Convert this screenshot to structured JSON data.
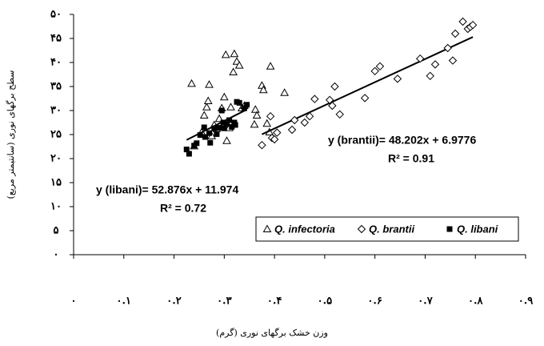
{
  "chart_data": {
    "type": "scatter",
    "xlabel": "وزن خشک برگهای نوری (گرم)",
    "ylabel": "سطح برگهای نوری (سانتیمتر مربع)",
    "xlim": [
      0,
      0.9
    ],
    "xticks": [
      {
        "value": 0,
        "label": "۰"
      },
      {
        "value": 0.1,
        "label": "۰.۱"
      },
      {
        "value": 0.2,
        "label": "۰.۲"
      },
      {
        "value": 0.3,
        "label": "۰.۳"
      },
      {
        "value": 0.4,
        "label": "۰.۴"
      },
      {
        "value": 0.5,
        "label": "۰.۵"
      },
      {
        "value": 0.6,
        "label": "۰.۶"
      },
      {
        "value": 0.7,
        "label": "۰.۷"
      },
      {
        "value": 0.8,
        "label": "۰.۸"
      },
      {
        "value": 0.9,
        "label": "۰.۹"
      }
    ],
    "ylim": [
      0,
      50
    ],
    "yticks": [
      {
        "value": 0,
        "label": "۰"
      },
      {
        "value": 5,
        "label": "۵"
      },
      {
        "value": 10,
        "label": "۱۰"
      },
      {
        "value": 15,
        "label": "۱۵"
      },
      {
        "value": 20,
        "label": "۲۰"
      },
      {
        "value": 25,
        "label": "۲۵"
      },
      {
        "value": 30,
        "label": "۳۰"
      },
      {
        "value": 35,
        "label": "۳۵"
      },
      {
        "value": 40,
        "label": "۴۰"
      },
      {
        "value": 45,
        "label": "۴۵"
      },
      {
        "value": 50,
        "label": "۵۰"
      }
    ],
    "series": [
      {
        "name": "Q. infectoria",
        "marker": "triangle",
        "color": "#000000",
        "x": [
          0.235,
          0.24,
          0.255,
          0.26,
          0.265,
          0.268,
          0.27,
          0.275,
          0.28,
          0.285,
          0.29,
          0.295,
          0.3,
          0.303,
          0.305,
          0.31,
          0.313,
          0.318,
          0.32,
          0.325,
          0.33,
          0.335,
          0.34,
          0.36,
          0.362,
          0.365,
          0.375,
          0.378,
          0.385,
          0.392,
          0.39,
          0.42
        ],
        "values": [
          35.6,
          22.6,
          25.5,
          29.0,
          30.7,
          32.0,
          35.4,
          24.7,
          27.0,
          26.2,
          28.3,
          30.5,
          32.8,
          41.6,
          23.7,
          26.4,
          30.7,
          38.0,
          41.8,
          40.2,
          39.4,
          30.5,
          31.0,
          27.1,
          30.2,
          29.0,
          35.2,
          34.3,
          27.3,
          39.2,
          25.5,
          33.7
        ]
      },
      {
        "name": "Q. brantii",
        "marker": "diamond",
        "color": "#000000",
        "x": [
          0.375,
          0.392,
          0.395,
          0.4,
          0.405,
          0.435,
          0.44,
          0.46,
          0.47,
          0.48,
          0.51,
          0.515,
          0.52,
          0.53,
          0.58,
          0.6,
          0.61,
          0.645,
          0.69,
          0.71,
          0.72,
          0.745,
          0.755,
          0.76,
          0.775,
          0.785,
          0.79,
          0.795
        ],
        "values": [
          22.8,
          28.8,
          24.3,
          24.0,
          25.4,
          26.0,
          28.0,
          27.5,
          28.8,
          32.4,
          32.2,
          31.0,
          35.0,
          29.2,
          32.6,
          38.2,
          39.2,
          36.6,
          40.8,
          37.2,
          39.6,
          43.0,
          40.4,
          46.0,
          48.5,
          47.0,
          47.4,
          47.8
        ],
        "trendline": {
          "label": "y (brantii)= 48.202x + 6.9776",
          "slope": 48.202,
          "intercept": 6.9776,
          "r2_label": "R² = 0.91",
          "r2": 0.91
        }
      },
      {
        "name": "Q. libani",
        "marker": "square",
        "color": "#000000",
        "x": [
          0.225,
          0.23,
          0.24,
          0.245,
          0.252,
          0.26,
          0.262,
          0.27,
          0.272,
          0.28,
          0.285,
          0.29,
          0.295,
          0.298,
          0.3,
          0.305,
          0.31,
          0.315,
          0.32,
          0.322,
          0.325,
          0.33,
          0.34,
          0.345
        ],
        "values": [
          21.9,
          21.0,
          22.7,
          23.2,
          24.9,
          26.5,
          24.5,
          25.3,
          23.3,
          26.3,
          25.1,
          26.4,
          30.0,
          27.5,
          26.3,
          27.2,
          28.0,
          26.6,
          27.5,
          27.0,
          31.8,
          31.6,
          30.5,
          31.2
        ],
        "trendline": {
          "label": "y (libani)= 52.876x + 11.974",
          "slope": 52.876,
          "intercept": 11.974,
          "r2_label": "R² = 0.72",
          "r2": 0.72
        }
      }
    ]
  }
}
